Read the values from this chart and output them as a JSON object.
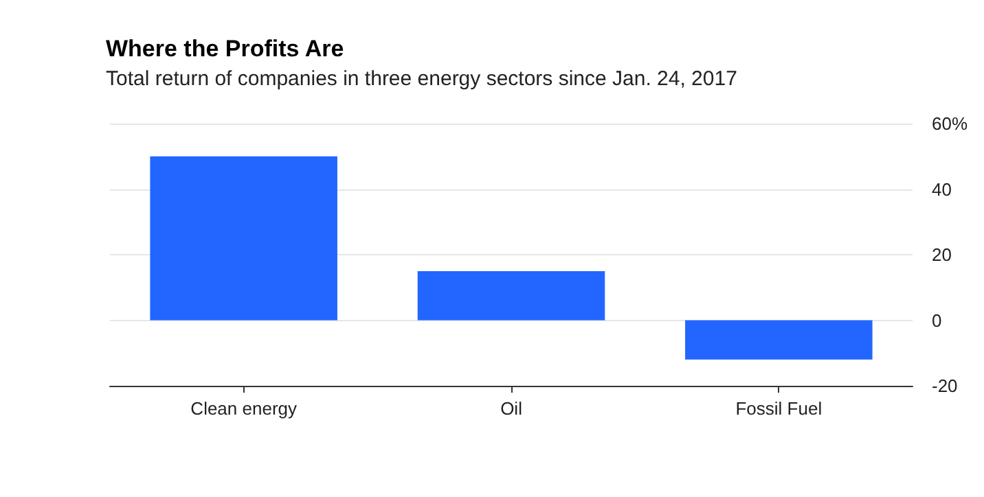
{
  "chart_data": {
    "type": "bar",
    "title": "Where the Profits Are",
    "subtitle": "Total return of companies in three energy sectors since Jan. 24, 2017",
    "categories": [
      "Clean energy",
      "Oil",
      "Fossil Fuel"
    ],
    "values": [
      50,
      15,
      -12
    ],
    "color": "#2266ff",
    "ylim": [
      -20,
      60
    ],
    "yticks": [
      -20,
      0,
      20,
      40,
      {
        "value": 60,
        "label": "60%"
      }
    ],
    "grid": "y"
  }
}
